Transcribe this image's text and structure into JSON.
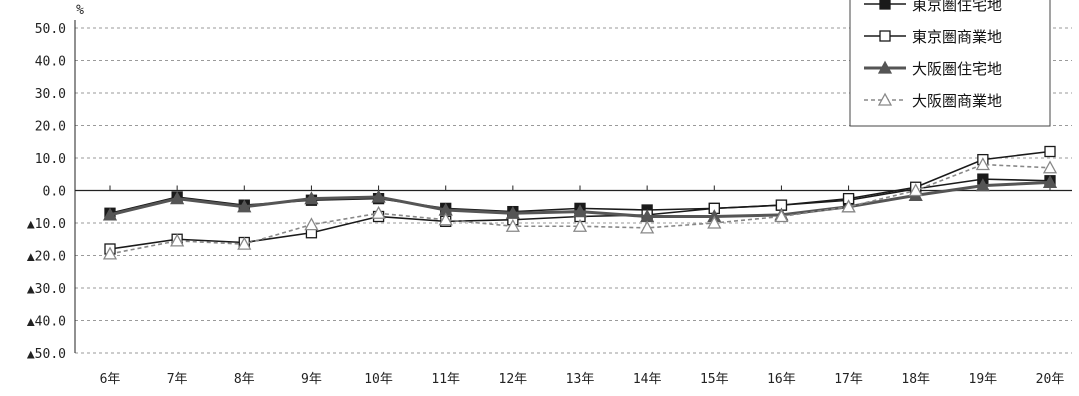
{
  "chart_data": {
    "type": "line",
    "title": "",
    "xlabel": "",
    "ylabel": "",
    "unit": "%",
    "ylim": [
      -50,
      50
    ],
    "yticks": [
      50,
      40,
      30,
      20,
      10,
      0,
      -10,
      -20,
      -30,
      -40,
      -50
    ],
    "ytick_labels": [
      "50.0",
      "40.0",
      "30.0",
      "20.0",
      "10.0",
      "0.0",
      "▲10.0",
      "▲20.0",
      "▲30.0",
      "▲40.0",
      "▲50.0"
    ],
    "categories": [
      "6年",
      "7年",
      "8年",
      "9年",
      "10年",
      "11年",
      "12年",
      "13年",
      "14年",
      "15年",
      "16年",
      "17年",
      "18年",
      "19年",
      "20年"
    ],
    "grid": true,
    "legend_position": "top-right",
    "series": [
      {
        "name": "東京圏住宅地",
        "values": [
          -7.0,
          -2.0,
          -4.5,
          -3.0,
          -2.5,
          -5.5,
          -6.5,
          -5.5,
          -6.0,
          -5.5,
          -4.5,
          -3.0,
          0.5,
          3.5,
          3.0
        ],
        "color": "#1a1a1a",
        "marker": "filled-square",
        "dash": ""
      },
      {
        "name": "東京圏商業地",
        "values": [
          -18.0,
          -15.0,
          -16.0,
          -13.0,
          -8.0,
          -9.5,
          -9.0,
          -8.0,
          -7.5,
          -5.5,
          -4.5,
          -2.5,
          1.0,
          9.5,
          12.0
        ],
        "color": "#1a1a1a",
        "marker": "open-square",
        "dash": ""
      },
      {
        "name": "大阪圏住宅地",
        "values": [
          -7.5,
          -2.5,
          -5.0,
          -2.5,
          -2.0,
          -6.0,
          -7.0,
          -6.5,
          -8.0,
          -8.0,
          -7.5,
          -5.0,
          -1.5,
          1.5,
          2.5
        ],
        "color": "#555555",
        "marker": "filled-triangle",
        "dash": ""
      },
      {
        "name": "大阪圏商業地",
        "values": [
          -19.5,
          -15.5,
          -16.5,
          -10.5,
          -7.0,
          -9.0,
          -11.0,
          -11.0,
          -11.5,
          -10.0,
          -8.0,
          -5.0,
          0.0,
          8.0,
          7.0
        ],
        "color": "#888888",
        "marker": "open-triangle",
        "dash": "4,3"
      }
    ]
  }
}
